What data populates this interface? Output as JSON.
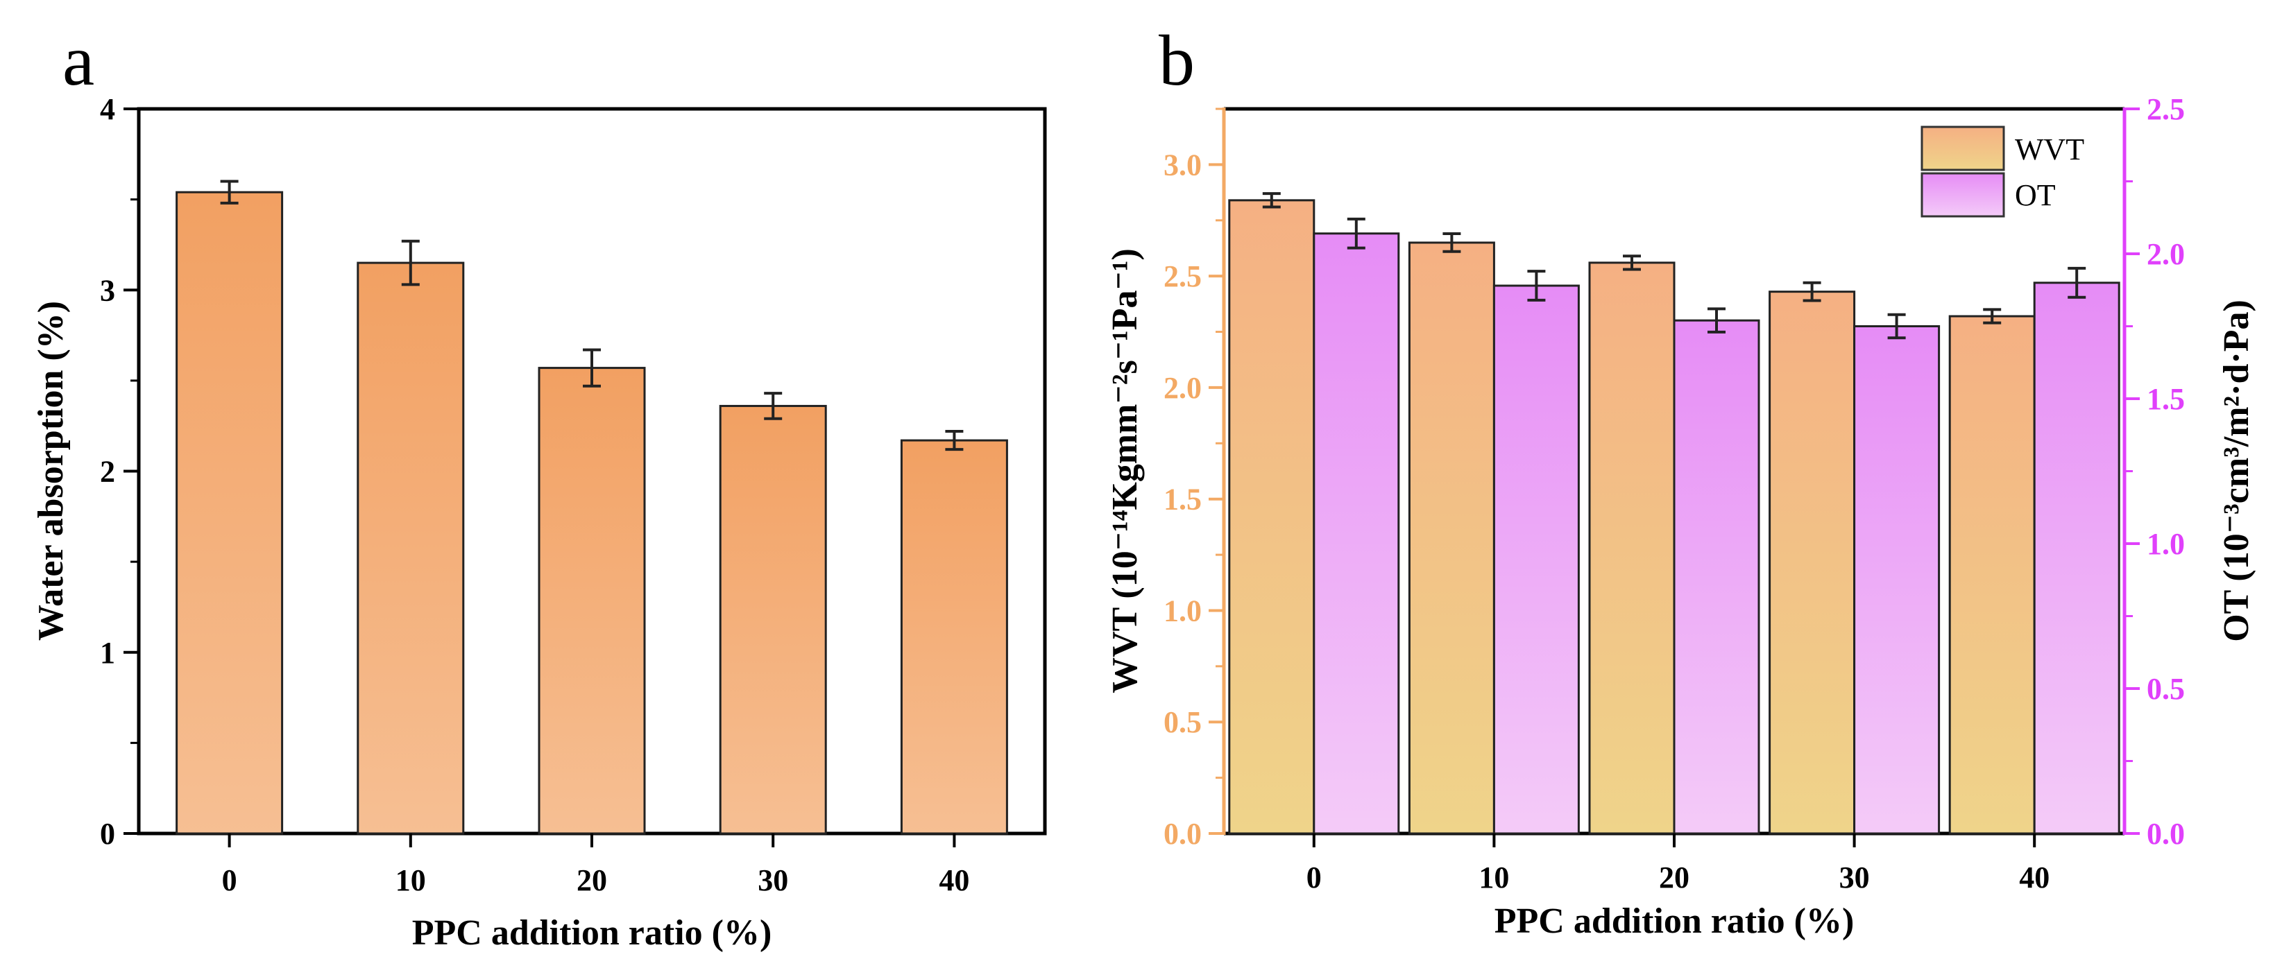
{
  "panel_a": {
    "letter": "a",
    "ylabel": "Water absorption (%)",
    "xlabel": "PPC addition ratio (%)",
    "yticks": [
      "0",
      "1",
      "2",
      "3",
      "4"
    ]
  },
  "panel_b": {
    "letter": "b",
    "ylabel_left": "WVT (10⁻¹⁴Kgmm⁻²s⁻¹Pa⁻¹)",
    "ylabel_right": "OT (10⁻³cm³/m²·d·Pa)",
    "xlabel": "PPC addition ratio (%)",
    "yticks_left": [
      "0.0",
      "0.5",
      "1.0",
      "1.5",
      "2.0",
      "2.5",
      "3.0"
    ],
    "yticks_right": [
      "0.0",
      "0.5",
      "1.0",
      "1.5",
      "2.0",
      "2.5"
    ],
    "legend": [
      "WVT",
      "OT"
    ]
  },
  "chart_data": [
    {
      "type": "bar",
      "categories": [
        "0",
        "10",
        "20",
        "30",
        "40"
      ],
      "values": [
        3.54,
        3.15,
        2.57,
        2.36,
        2.17
      ],
      "errors": [
        0.06,
        0.12,
        0.1,
        0.07,
        0.05
      ],
      "title": "",
      "xlabel": "PPC addition ratio (%)",
      "ylabel": "Water absorption (%)",
      "ylim": [
        0,
        4
      ],
      "color": "#F2A36A"
    },
    {
      "type": "bar",
      "categories": [
        "0",
        "10",
        "20",
        "30",
        "40"
      ],
      "series": [
        {
          "name": "WVT",
          "axis": "left",
          "values": [
            2.84,
            2.65,
            2.56,
            2.43,
            2.32
          ],
          "errors": [
            0.03,
            0.04,
            0.03,
            0.04,
            0.03
          ],
          "color": "#F3B07E"
        },
        {
          "name": "OT",
          "axis": "right",
          "values": [
            2.07,
            1.89,
            1.77,
            1.75,
            1.9
          ],
          "errors": [
            0.05,
            0.05,
            0.04,
            0.04,
            0.05
          ],
          "color": "#E797F3"
        }
      ],
      "title": "",
      "xlabel": "PPC addition ratio (%)",
      "ylabel_left": "WVT (10⁻¹⁴Kgmm⁻²s⁻¹Pa⁻¹)",
      "ylabel_right": "OT (10⁻³cm³/m²·d·Pa)",
      "ylim_left": [
        0,
        3.25
      ],
      "ylim_right": [
        0,
        2.5
      ],
      "legend_position": "top-right",
      "left_axis_color": "#F3A964",
      "right_axis_color": "#E040FB"
    }
  ]
}
